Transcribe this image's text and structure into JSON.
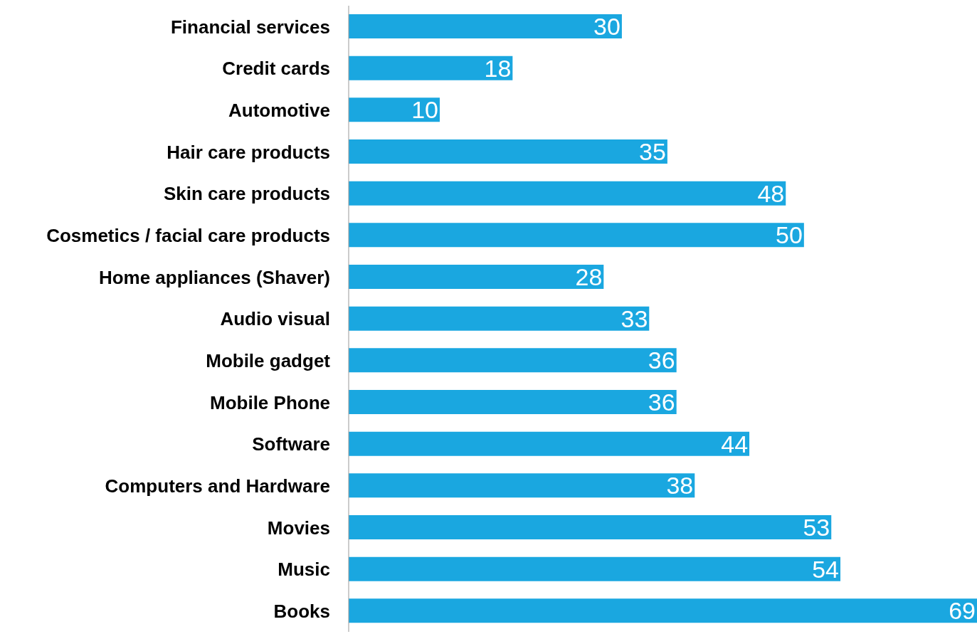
{
  "chart_data": {
    "type": "bar",
    "orientation": "horizontal",
    "categories": [
      "Financial services",
      "Credit cards",
      "Automotive",
      "Hair care products",
      "Skin care products",
      "Cosmetics / facial care products",
      "Home appliances (Shaver)",
      "Audio visual",
      "Mobile gadget",
      "Mobile Phone",
      "Software",
      "Computers and Hardware",
      "Movies",
      "Music",
      "Books"
    ],
    "values": [
      30,
      18,
      10,
      35,
      48,
      50,
      28,
      33,
      36,
      36,
      44,
      38,
      53,
      54,
      69
    ],
    "color": "#1aa7e0",
    "data_labels": true,
    "legend": false,
    "grid": false
  }
}
